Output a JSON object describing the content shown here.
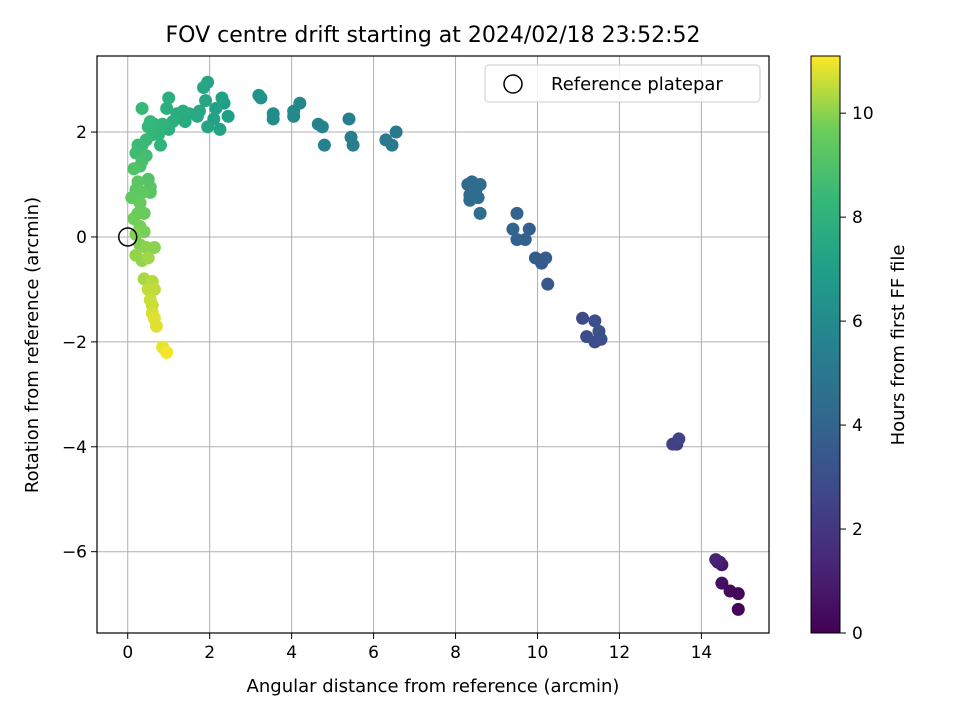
{
  "chart_data": {
    "type": "scatter",
    "title": "FOV centre drift starting at 2024/02/18 23:52:52",
    "xlabel": "Angular distance from reference (arcmin)",
    "ylabel": "Rotation from reference (arcmin)",
    "xlim": [
      -0.75,
      15.65
    ],
    "ylim": [
      -7.55,
      3.45
    ],
    "xticks": [
      0,
      2,
      4,
      6,
      8,
      10,
      12,
      14
    ],
    "yticks": [
      -6,
      -4,
      -2,
      0,
      2
    ],
    "grid": true,
    "legend": {
      "placement": "top-right",
      "entries": [
        "Reference platepar"
      ]
    },
    "reference_point": {
      "x": 0,
      "y": 0,
      "label": "Reference platepar"
    },
    "colorbar": {
      "label": "Hours from first FF file",
      "range": [
        0,
        11.1
      ],
      "ticks": [
        0,
        2,
        4,
        6,
        8,
        10
      ],
      "colormap": "viridis"
    },
    "points": [
      {
        "x": 14.9,
        "y": -7.1,
        "h": 0.1
      },
      {
        "x": 14.9,
        "y": -6.8,
        "h": 0.2
      },
      {
        "x": 14.7,
        "y": -6.75,
        "h": 0.3
      },
      {
        "x": 14.5,
        "y": -6.6,
        "h": 0.5
      },
      {
        "x": 14.5,
        "y": -6.25,
        "h": 0.8
      },
      {
        "x": 14.4,
        "y": -6.2,
        "h": 1.0
      },
      {
        "x": 14.35,
        "y": -6.15,
        "h": 1.2
      },
      {
        "x": 14.45,
        "y": -6.2,
        "h": 0.9
      },
      {
        "x": 13.4,
        "y": -3.95,
        "h": 2.3
      },
      {
        "x": 13.3,
        "y": -3.95,
        "h": 2.4
      },
      {
        "x": 13.45,
        "y": -3.85,
        "h": 2.5
      },
      {
        "x": 11.1,
        "y": -1.55,
        "h": 2.8
      },
      {
        "x": 11.2,
        "y": -1.9,
        "h": 2.9
      },
      {
        "x": 11.4,
        "y": -1.6,
        "h": 3.0
      },
      {
        "x": 11.5,
        "y": -1.8,
        "h": 3.1
      },
      {
        "x": 11.55,
        "y": -1.95,
        "h": 3.0
      },
      {
        "x": 11.4,
        "y": -2.0,
        "h": 2.9
      },
      {
        "x": 10.25,
        "y": -0.9,
        "h": 3.4
      },
      {
        "x": 10.1,
        "y": -0.5,
        "h": 3.5
      },
      {
        "x": 10.2,
        "y": -0.4,
        "h": 3.6
      },
      {
        "x": 9.95,
        "y": -0.4,
        "h": 3.6
      },
      {
        "x": 9.8,
        "y": 0.15,
        "h": 3.8
      },
      {
        "x": 9.7,
        "y": -0.05,
        "h": 3.9
      },
      {
        "x": 9.5,
        "y": -0.05,
        "h": 3.9
      },
      {
        "x": 9.4,
        "y": 0.15,
        "h": 4.0
      },
      {
        "x": 9.5,
        "y": 0.45,
        "h": 4.0
      },
      {
        "x": 8.3,
        "y": 1.0,
        "h": 4.2
      },
      {
        "x": 8.4,
        "y": 1.05,
        "h": 4.3
      },
      {
        "x": 8.35,
        "y": 0.8,
        "h": 4.3
      },
      {
        "x": 8.5,
        "y": 0.9,
        "h": 4.4
      },
      {
        "x": 8.6,
        "y": 1.0,
        "h": 4.4
      },
      {
        "x": 8.55,
        "y": 0.75,
        "h": 4.4
      },
      {
        "x": 8.35,
        "y": 0.7,
        "h": 4.4
      },
      {
        "x": 8.6,
        "y": 0.45,
        "h": 4.5
      },
      {
        "x": 8.45,
        "y": 0.85,
        "h": 4.4
      },
      {
        "x": 6.55,
        "y": 2.0,
        "h": 5.0
      },
      {
        "x": 6.3,
        "y": 1.85,
        "h": 5.0
      },
      {
        "x": 6.45,
        "y": 1.75,
        "h": 5.1
      },
      {
        "x": 5.5,
        "y": 1.75,
        "h": 5.3
      },
      {
        "x": 5.45,
        "y": 1.9,
        "h": 5.3
      },
      {
        "x": 5.4,
        "y": 2.25,
        "h": 5.4
      },
      {
        "x": 4.8,
        "y": 1.75,
        "h": 5.5
      },
      {
        "x": 4.75,
        "y": 2.1,
        "h": 5.6
      },
      {
        "x": 4.65,
        "y": 2.15,
        "h": 5.6
      },
      {
        "x": 4.2,
        "y": 2.55,
        "h": 5.8
      },
      {
        "x": 4.05,
        "y": 2.4,
        "h": 5.9
      },
      {
        "x": 4.05,
        "y": 2.3,
        "h": 5.9
      },
      {
        "x": 3.55,
        "y": 2.35,
        "h": 6.1
      },
      {
        "x": 3.55,
        "y": 2.25,
        "h": 6.1
      },
      {
        "x": 3.25,
        "y": 2.65,
        "h": 6.3
      },
      {
        "x": 3.2,
        "y": 2.7,
        "h": 6.4
      },
      {
        "x": 2.45,
        "y": 2.3,
        "h": 7.0
      },
      {
        "x": 2.35,
        "y": 2.55,
        "h": 7.0
      },
      {
        "x": 2.3,
        "y": 2.65,
        "h": 7.1
      },
      {
        "x": 2.15,
        "y": 2.45,
        "h": 7.1
      },
      {
        "x": 2.1,
        "y": 2.25,
        "h": 7.2
      },
      {
        "x": 2.25,
        "y": 2.05,
        "h": 7.2
      },
      {
        "x": 1.95,
        "y": 2.1,
        "h": 7.3
      },
      {
        "x": 1.95,
        "y": 2.95,
        "h": 7.3
      },
      {
        "x": 1.85,
        "y": 2.85,
        "h": 7.4
      },
      {
        "x": 1.9,
        "y": 2.6,
        "h": 7.4
      },
      {
        "x": 1.75,
        "y": 2.4,
        "h": 7.5
      },
      {
        "x": 1.7,
        "y": 2.3,
        "h": 7.5
      },
      {
        "x": 1.5,
        "y": 2.35,
        "h": 7.6
      },
      {
        "x": 1.4,
        "y": 2.2,
        "h": 7.6
      },
      {
        "x": 1.35,
        "y": 2.4,
        "h": 7.7
      },
      {
        "x": 1.2,
        "y": 2.35,
        "h": 7.7
      },
      {
        "x": 1.1,
        "y": 2.2,
        "h": 7.8
      },
      {
        "x": 1.0,
        "y": 2.65,
        "h": 7.8
      },
      {
        "x": 0.95,
        "y": 2.45,
        "h": 7.9
      },
      {
        "x": 1.0,
        "y": 2.05,
        "h": 7.9
      },
      {
        "x": 0.85,
        "y": 2.15,
        "h": 8.0
      },
      {
        "x": 0.8,
        "y": 1.75,
        "h": 8.1
      },
      {
        "x": 0.75,
        "y": 1.95,
        "h": 8.1
      },
      {
        "x": 0.65,
        "y": 2.15,
        "h": 8.2
      },
      {
        "x": 0.6,
        "y": 1.95,
        "h": 8.2
      },
      {
        "x": 0.55,
        "y": 2.2,
        "h": 8.3
      },
      {
        "x": 0.5,
        "y": 2.1,
        "h": 8.3
      },
      {
        "x": 0.45,
        "y": 1.85,
        "h": 8.4
      },
      {
        "x": 0.35,
        "y": 2.45,
        "h": 8.4
      },
      {
        "x": 0.35,
        "y": 1.75,
        "h": 8.5
      },
      {
        "x": 0.25,
        "y": 1.75,
        "h": 8.5
      },
      {
        "x": 0.2,
        "y": 1.6,
        "h": 8.6
      },
      {
        "x": 0.45,
        "y": 1.55,
        "h": 8.7
      },
      {
        "x": 0.35,
        "y": 1.45,
        "h": 8.8
      },
      {
        "x": 0.3,
        "y": 1.35,
        "h": 8.9
      },
      {
        "x": 0.15,
        "y": 1.3,
        "h": 9.0
      },
      {
        "x": 0.5,
        "y": 1.1,
        "h": 9.1
      },
      {
        "x": 0.55,
        "y": 0.95,
        "h": 9.2
      },
      {
        "x": 0.55,
        "y": 0.85,
        "h": 9.2
      },
      {
        "x": 0.25,
        "y": 1.05,
        "h": 9.3
      },
      {
        "x": 0.2,
        "y": 0.9,
        "h": 9.3
      },
      {
        "x": 0.35,
        "y": 0.85,
        "h": 9.4
      },
      {
        "x": 0.1,
        "y": 0.75,
        "h": 9.4
      },
      {
        "x": 0.3,
        "y": 0.65,
        "h": 9.5
      },
      {
        "x": 0.25,
        "y": 0.45,
        "h": 9.6
      },
      {
        "x": 0.4,
        "y": 0.45,
        "h": 9.6
      },
      {
        "x": 0.15,
        "y": 0.35,
        "h": 9.7
      },
      {
        "x": 0.3,
        "y": 0.2,
        "h": 9.8
      },
      {
        "x": 0.4,
        "y": 0.1,
        "h": 9.8
      },
      {
        "x": 0.2,
        "y": 0.05,
        "h": 9.9
      },
      {
        "x": 0.3,
        "y": -0.15,
        "h": 9.9
      },
      {
        "x": 0.45,
        "y": -0.2,
        "h": 10.0
      },
      {
        "x": 0.65,
        "y": -0.2,
        "h": 10.0
      },
      {
        "x": 0.2,
        "y": -0.35,
        "h": 10.1
      },
      {
        "x": 0.35,
        "y": -0.45,
        "h": 10.1
      },
      {
        "x": 0.5,
        "y": -0.4,
        "h": 10.2
      },
      {
        "x": 0.4,
        "y": -0.8,
        "h": 10.3
      },
      {
        "x": 0.6,
        "y": -0.85,
        "h": 10.4
      },
      {
        "x": 0.5,
        "y": -1.0,
        "h": 10.5
      },
      {
        "x": 0.65,
        "y": -1.0,
        "h": 10.5
      },
      {
        "x": 0.55,
        "y": -1.2,
        "h": 10.6
      },
      {
        "x": 0.6,
        "y": -1.3,
        "h": 10.6
      },
      {
        "x": 0.6,
        "y": -1.45,
        "h": 10.7
      },
      {
        "x": 0.65,
        "y": -1.55,
        "h": 10.8
      },
      {
        "x": 0.7,
        "y": -1.7,
        "h": 10.8
      },
      {
        "x": 0.85,
        "y": -2.1,
        "h": 10.9
      },
      {
        "x": 0.95,
        "y": -2.2,
        "h": 11.0
      }
    ]
  }
}
